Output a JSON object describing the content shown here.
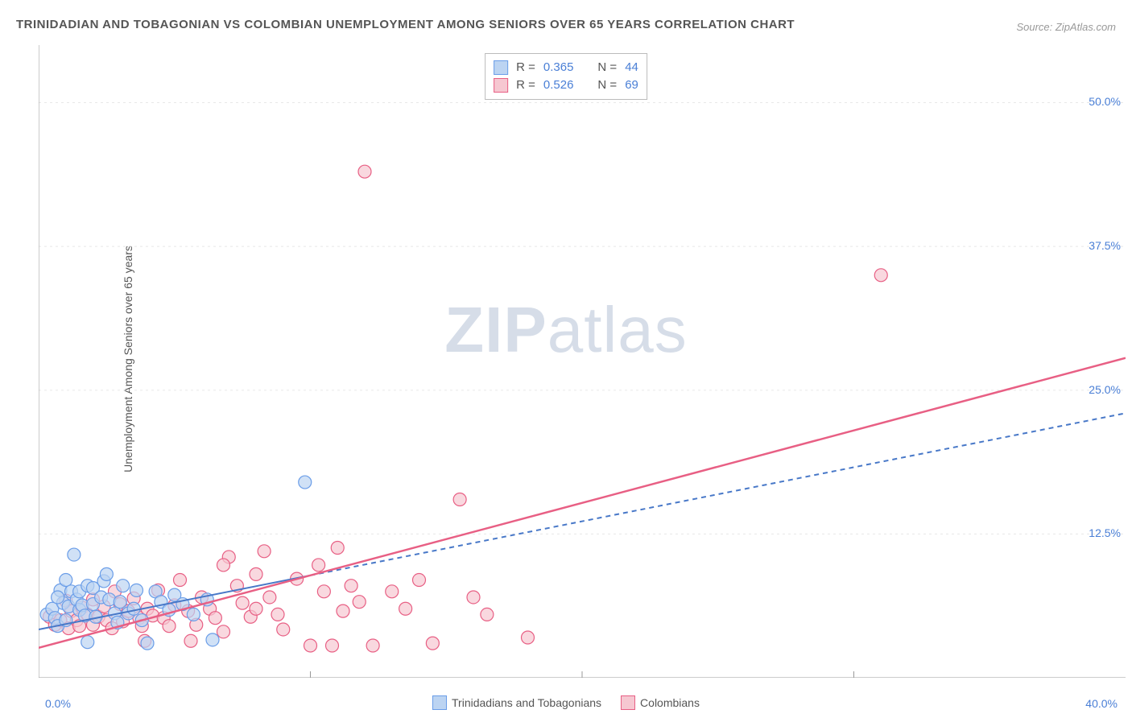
{
  "title": "TRINIDADIAN AND TOBAGONIAN VS COLOMBIAN UNEMPLOYMENT AMONG SENIORS OVER 65 YEARS CORRELATION CHART",
  "source": "Source: ZipAtlas.com",
  "ylabel": "Unemployment Among Seniors over 65 years",
  "watermark_zip": "ZIP",
  "watermark_atlas": "atlas",
  "chart": {
    "type": "scatter",
    "xlim": [
      0,
      40
    ],
    "ylim": [
      0,
      55
    ],
    "xtick_left": "0.0%",
    "xtick_right": "40.0%",
    "yticks": [
      {
        "v": 12.5,
        "label": "12.5%"
      },
      {
        "v": 25.0,
        "label": "25.0%"
      },
      {
        "v": 37.5,
        "label": "37.5%"
      },
      {
        "v": 50.0,
        "label": "50.0%"
      }
    ],
    "background_color": "#ffffff",
    "grid_color": "#e8e8e8",
    "axis_color": "#999999",
    "text_color": "#555555",
    "value_color": "#4a7fd6",
    "marker_radius": 8,
    "series": [
      {
        "key": "blue",
        "name": "Trinidadians and Tobagonians",
        "fill": "#bcd4f2",
        "stroke": "#6a9de8",
        "r_label": "R =",
        "r_value": "0.365",
        "n_label": "N =",
        "n_value": "44",
        "line": {
          "x1": 0,
          "y1": 4.2,
          "x2": 40,
          "y2": 23.0,
          "solid_to_x": 10.0,
          "dash": "6,5",
          "width": 2,
          "color": "#4878c8"
        },
        "points": [
          [
            0.3,
            5.5
          ],
          [
            0.5,
            6.0
          ],
          [
            0.6,
            5.2
          ],
          [
            0.7,
            4.5
          ],
          [
            0.8,
            7.6
          ],
          [
            0.9,
            6.5
          ],
          [
            1.0,
            5.0
          ],
          [
            1.0,
            8.5
          ],
          [
            1.1,
            6.2
          ],
          [
            1.2,
            7.5
          ],
          [
            1.3,
            10.7
          ],
          [
            1.4,
            6.8
          ],
          [
            1.5,
            5.9
          ],
          [
            1.5,
            7.5
          ],
          [
            1.6,
            6.3
          ],
          [
            1.7,
            5.4
          ],
          [
            1.8,
            8.0
          ],
          [
            2.0,
            7.8
          ],
          [
            2.0,
            6.4
          ],
          [
            2.1,
            5.3
          ],
          [
            2.3,
            7.0
          ],
          [
            2.4,
            8.4
          ],
          [
            2.5,
            9.0
          ],
          [
            2.6,
            6.8
          ],
          [
            2.8,
            5.6
          ],
          [
            2.9,
            4.8
          ],
          [
            3.0,
            6.6
          ],
          [
            3.1,
            8.0
          ],
          [
            3.3,
            5.6
          ],
          [
            3.5,
            6.0
          ],
          [
            3.6,
            7.6
          ],
          [
            3.8,
            5.0
          ],
          [
            4.0,
            3.0
          ],
          [
            4.3,
            7.5
          ],
          [
            4.5,
            6.6
          ],
          [
            4.8,
            5.9
          ],
          [
            5.0,
            7.2
          ],
          [
            5.3,
            6.4
          ],
          [
            5.7,
            5.5
          ],
          [
            6.2,
            6.8
          ],
          [
            6.4,
            3.3
          ],
          [
            9.8,
            17.0
          ],
          [
            1.8,
            3.1
          ],
          [
            0.7,
            7.0
          ]
        ]
      },
      {
        "key": "pink",
        "name": "Colombians",
        "fill": "#f6c7d1",
        "stroke": "#e85f84",
        "r_label": "R =",
        "r_value": "0.526",
        "n_label": "N =",
        "n_value": "69",
        "line": {
          "x1": 0,
          "y1": 2.6,
          "x2": 40,
          "y2": 27.8,
          "solid_to_x": 40.0,
          "dash": "",
          "width": 2.5,
          "color": "#e85f84"
        },
        "points": [
          [
            0.4,
            5.3
          ],
          [
            0.6,
            4.6
          ],
          [
            0.8,
            5.0
          ],
          [
            1.0,
            6.7
          ],
          [
            1.1,
            4.3
          ],
          [
            1.2,
            5.8
          ],
          [
            1.4,
            5.0
          ],
          [
            1.5,
            4.5
          ],
          [
            1.6,
            6.1
          ],
          [
            1.8,
            5.5
          ],
          [
            2.0,
            6.8
          ],
          [
            2.0,
            4.6
          ],
          [
            2.2,
            5.3
          ],
          [
            2.4,
            6.2
          ],
          [
            2.5,
            5.0
          ],
          [
            2.7,
            4.3
          ],
          [
            2.8,
            7.5
          ],
          [
            3.0,
            6.4
          ],
          [
            3.1,
            4.9
          ],
          [
            3.3,
            5.8
          ],
          [
            3.5,
            6.9
          ],
          [
            3.7,
            5.2
          ],
          [
            3.8,
            4.5
          ],
          [
            4.0,
            6.0
          ],
          [
            4.2,
            5.4
          ],
          [
            4.4,
            7.6
          ],
          [
            4.6,
            5.2
          ],
          [
            4.8,
            4.5
          ],
          [
            5.0,
            6.3
          ],
          [
            5.2,
            8.5
          ],
          [
            5.5,
            5.8
          ],
          [
            5.8,
            4.6
          ],
          [
            6.0,
            7.0
          ],
          [
            6.3,
            6.0
          ],
          [
            6.5,
            5.2
          ],
          [
            6.8,
            4.0
          ],
          [
            7.0,
            10.5
          ],
          [
            7.3,
            8.0
          ],
          [
            7.5,
            6.5
          ],
          [
            7.8,
            5.3
          ],
          [
            8.0,
            9.0
          ],
          [
            8.3,
            11.0
          ],
          [
            8.5,
            7.0
          ],
          [
            8.8,
            5.5
          ],
          [
            9.0,
            4.2
          ],
          [
            9.5,
            8.6
          ],
          [
            10.0,
            2.8
          ],
          [
            10.3,
            9.8
          ],
          [
            10.5,
            7.5
          ],
          [
            10.8,
            2.8
          ],
          [
            11.0,
            11.3
          ],
          [
            11.2,
            5.8
          ],
          [
            11.5,
            8.0
          ],
          [
            11.8,
            6.6
          ],
          [
            12.0,
            44.0
          ],
          [
            12.3,
            2.8
          ],
          [
            13.0,
            7.5
          ],
          [
            13.5,
            6.0
          ],
          [
            14.0,
            8.5
          ],
          [
            14.5,
            3.0
          ],
          [
            15.5,
            15.5
          ],
          [
            16.0,
            7.0
          ],
          [
            16.5,
            5.5
          ],
          [
            18.0,
            3.5
          ],
          [
            31.0,
            35.0
          ],
          [
            3.9,
            3.2
          ],
          [
            5.6,
            3.2
          ],
          [
            8.0,
            6.0
          ],
          [
            6.8,
            9.8
          ]
        ]
      }
    ],
    "legend_bottom": [
      {
        "name": "Trinidadians and Tobagonians",
        "fill": "#bcd4f2",
        "stroke": "#6a9de8"
      },
      {
        "name": "Colombians",
        "fill": "#f6c7d1",
        "stroke": "#e85f84"
      }
    ]
  }
}
